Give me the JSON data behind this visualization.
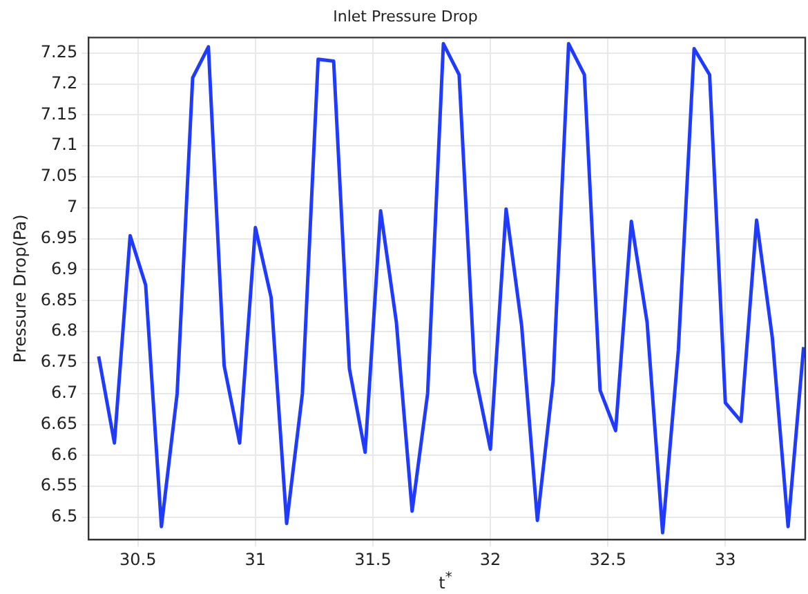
{
  "chart_data": {
    "type": "line",
    "title": "Inlet Pressure Drop",
    "xlabel": "t$^{*}$",
    "ylabel": "Pressure Drop(Pa)",
    "x": [
      30.333,
      30.4,
      30.467,
      30.533,
      30.6,
      30.667,
      30.733,
      30.8,
      30.867,
      30.933,
      31.0,
      31.067,
      31.133,
      31.2,
      31.267,
      31.333,
      31.4,
      31.467,
      31.533,
      31.6,
      31.667,
      31.733,
      31.8,
      31.867,
      31.933,
      32.0,
      32.067,
      32.133,
      32.2,
      32.267,
      32.333,
      32.4,
      32.467,
      32.533,
      32.6,
      32.667,
      32.733,
      32.8,
      32.867,
      32.933,
      33.0,
      33.067,
      33.133,
      33.2,
      33.267,
      33.333
    ],
    "series": [
      {
        "color": "#1f3bff",
        "values": [
          6.76,
          6.62,
          6.955,
          6.875,
          6.485,
          6.7,
          7.21,
          7.26,
          6.745,
          6.62,
          6.968,
          6.855,
          6.49,
          6.7,
          7.24,
          7.237,
          6.74,
          6.605,
          6.995,
          6.815,
          6.51,
          6.7,
          7.265,
          7.215,
          6.735,
          6.61,
          6.998,
          6.81,
          6.495,
          6.72,
          7.265,
          7.215,
          6.705,
          6.64,
          6.978,
          6.815,
          6.475,
          6.77,
          7.257,
          7.215,
          6.685,
          6.655,
          6.98,
          6.79,
          6.485,
          6.775
        ]
      }
    ],
    "xlim": [
      30.29,
      33.34
    ],
    "ylim": [
      6.464,
      7.275
    ],
    "xticks": [
      30.5,
      31,
      31.5,
      32,
      32.5,
      33
    ],
    "yticks": [
      6.5,
      6.55,
      6.6,
      6.65,
      6.7,
      6.75,
      6.8,
      6.85,
      6.9,
      6.95,
      7,
      7.05,
      7.1,
      7.15,
      7.2,
      7.25
    ],
    "grid": true,
    "legend": false,
    "marker": "none",
    "line_style": "solid"
  }
}
